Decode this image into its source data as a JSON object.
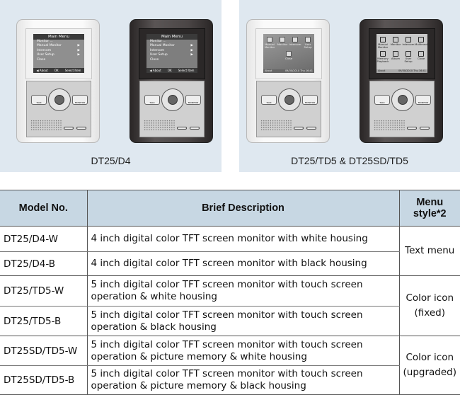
{
  "panels": [
    {
      "caption": "DT25/D4"
    },
    {
      "caption": "DT25/TD5 & DT25SD/TD5"
    }
  ],
  "text_menu": {
    "title": "Main Menu",
    "items": [
      {
        "label": "Monitor ..."
      },
      {
        "label": "Manual Monitor",
        "arrow": "▶"
      },
      {
        "label": "Intercom",
        "arrow": "▶"
      },
      {
        "label": "User Setup",
        "arrow": "▶"
      },
      {
        "label": "Close"
      }
    ],
    "footer": [
      "◀ About",
      "OK",
      "Select Item"
    ]
  },
  "icon_menu_fixed": {
    "items": [
      "Manual Monitor",
      "Monitor",
      "Intercom",
      "User Setup",
      "Close"
    ],
    "about": "About",
    "datetime": "09/30/2010 Thu 16:41"
  },
  "icon_menu_upgraded": {
    "items": [
      "Manual Monitor",
      "Monitor",
      "Intercom",
      "Multimedia",
      "Memory Playback",
      "Album",
      "User Setup",
      "Close"
    ],
    "about": "About",
    "datetime": "09/30/2010 Thu 16:41"
  },
  "device_buttons": {
    "talk": "TALK",
    "menu": "MENU",
    "monitor": "MONITOR"
  },
  "table": {
    "headers": [
      "Model No.",
      "Brief Description",
      "Menu style*2"
    ],
    "rows": [
      {
        "model": "DT25/D4-W",
        "desc": "4 inch digital color TFT screen monitor with white housing"
      },
      {
        "model": "DT25/D4-B",
        "desc": "4 inch digital color TFT screen monitor with black housing"
      },
      {
        "model": "DT25/TD5-W",
        "desc": "5 inch digital color TFT screen monitor with touch screen operation & white housing"
      },
      {
        "model": "DT25/TD5-B",
        "desc": "5 inch digital color TFT screen monitor with touch screen operation & black housing"
      },
      {
        "model": "DT25SD/TD5-W",
        "desc": "5 inch digital color TFT screen monitor with touch screen operation & picture memory & white housing"
      },
      {
        "model": "DT25SD/TD5-B",
        "desc": "5 inch digital color TFT screen monitor with touch screen operation & picture memory & black housing"
      }
    ],
    "menu_styles": [
      "Text menu",
      "Color icon (fixed)",
      "Color icon (upgraded)"
    ]
  },
  "colors": {
    "panel_bg": "#dfe8f0",
    "header_bg": "#c7d7e3"
  }
}
